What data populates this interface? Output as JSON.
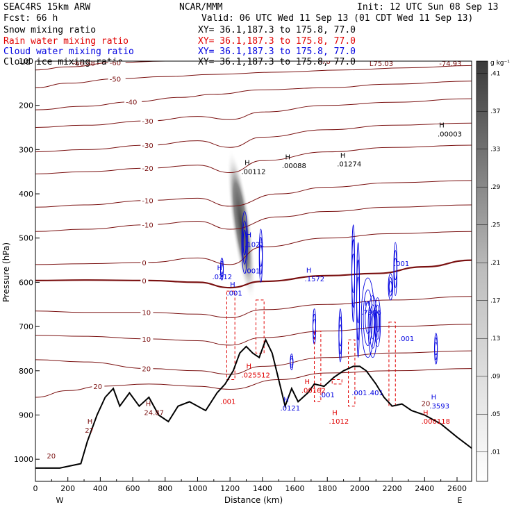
{
  "header": {
    "left_line1": "SEAC4RS 15km ARW",
    "left_line2": "Fcst:    66 h",
    "center_line1": "NCAR/MMM",
    "right_line1": "Init: 12 UTC Sun 08 Sep 13",
    "right_line2": "Valid: 06 UTC Wed 11 Sep 13 (01 CDT Wed 11 Sep 13)",
    "fields": [
      {
        "name": "Snow mixing ratio",
        "xy": "XY=  36.1,187.3 to 175.8, 77.0",
        "color": "#000000"
      },
      {
        "name": "Rain water mixing ratio",
        "xy": "XY=  36.1,187.3 to 175.8, 77.0",
        "color": "#e00000"
      },
      {
        "name": "Cloud water mixing ratio",
        "xy": "XY=  36.1,187.3 to 175.8, 77.0",
        "color": "#0000e0"
      },
      {
        "name": "Cloud ice mixing ratio",
        "xy": "XY=  36.1,187.3 to 175.8, 77.0",
        "color": "#000000"
      }
    ]
  },
  "chart_data": {
    "type": "cross-section",
    "xlabel": "Distance (km)",
    "ylabel": "Pressure (hPa)",
    "xlim": [
      0,
      2690
    ],
    "ylim": [
      100,
      1050
    ],
    "x_ticks": [
      0,
      200,
      400,
      600,
      800,
      1000,
      1200,
      1400,
      1600,
      1800,
      2000,
      2200,
      2400,
      2600
    ],
    "y_ticks": [
      100,
      200,
      300,
      400,
      500,
      600,
      700,
      800,
      900,
      1000
    ],
    "y_axis_reversed": true,
    "x_end_labels": {
      "left": "W",
      "right": "E"
    },
    "colors": {
      "temperature": "#7a1010",
      "rain": "#e00000",
      "cloud": "#0000e0",
      "terrain": "#000000"
    },
    "colorbar": {
      "units": "g kg⁻¹",
      "labels": [
        ".01",
        ".05",
        ".09",
        ".13",
        ".17",
        ".21",
        ".25",
        ".29",
        ".33",
        ".37",
        ".41"
      ]
    },
    "temperature_isotherms": [
      {
        "label": "-60",
        "points": [
          [
            0,
            120
          ],
          [
            200,
            113
          ],
          [
            500,
            103
          ],
          [
            800,
            100
          ],
          [
            1100,
            96
          ],
          [
            1500,
            92
          ],
          [
            1900,
            90
          ],
          [
            2300,
            86
          ],
          [
            2690,
            83
          ]
        ]
      },
      {
        "label": "-50",
        "points": [
          [
            0,
            160
          ],
          [
            200,
            150
          ],
          [
            500,
            140
          ],
          [
            800,
            135
          ],
          [
            1100,
            130
          ],
          [
            1500,
            125
          ],
          [
            1900,
            120
          ],
          [
            2300,
            115
          ],
          [
            2690,
            110
          ]
        ]
      },
      {
        "label": "-40",
        "points": [
          [
            0,
            210
          ],
          [
            300,
            202
          ],
          [
            600,
            192
          ],
          [
            900,
            182
          ],
          [
            1100,
            175
          ],
          [
            1400,
            165
          ],
          [
            1800,
            160
          ],
          [
            2200,
            152
          ],
          [
            2690,
            145
          ]
        ]
      },
      {
        "label": "-30",
        "points": [
          [
            0,
            250
          ],
          [
            300,
            245
          ],
          [
            700,
            235
          ],
          [
            1000,
            225
          ],
          [
            1200,
            232
          ],
          [
            1400,
            215
          ],
          [
            1800,
            200
          ],
          [
            2200,
            193
          ],
          [
            2690,
            185
          ]
        ]
      },
      {
        "label": "-30",
        "points": [
          [
            0,
            305
          ],
          [
            300,
            300
          ],
          [
            700,
            290
          ],
          [
            1000,
            280
          ],
          [
            1200,
            295
          ],
          [
            1400,
            272
          ],
          [
            1800,
            255
          ],
          [
            2200,
            245
          ],
          [
            2690,
            240
          ]
        ]
      },
      {
        "label": "-20",
        "points": [
          [
            0,
            355
          ],
          [
            300,
            350
          ],
          [
            700,
            342
          ],
          [
            1000,
            335
          ],
          [
            1200,
            352
          ],
          [
            1400,
            325
          ],
          [
            1800,
            305
          ],
          [
            2200,
            295
          ],
          [
            2690,
            290
          ]
        ]
      },
      {
        "label": "-10",
        "points": [
          [
            0,
            430
          ],
          [
            300,
            425
          ],
          [
            700,
            415
          ],
          [
            1000,
            410
          ],
          [
            1200,
            428
          ],
          [
            1500,
            400
          ],
          [
            1800,
            385
          ],
          [
            2200,
            375
          ],
          [
            2690,
            370
          ]
        ]
      },
      {
        "label": "-10",
        "points": [
          [
            0,
            485
          ],
          [
            300,
            480
          ],
          [
            700,
            470
          ],
          [
            1000,
            462
          ],
          [
            1200,
            480
          ],
          [
            1500,
            452
          ],
          [
            1800,
            440
          ],
          [
            2200,
            430
          ],
          [
            2690,
            425
          ]
        ]
      },
      {
        "label": "0",
        "points": [
          [
            0,
            560
          ],
          [
            300,
            558
          ],
          [
            700,
            555
          ],
          [
            1000,
            545
          ],
          [
            1200,
            560
          ],
          [
            1400,
            520
          ],
          [
            1800,
            500
          ],
          [
            2200,
            490
          ],
          [
            2690,
            485
          ]
        ]
      },
      {
        "label": "0",
        "points": [
          [
            0,
            596
          ],
          [
            300,
            595
          ],
          [
            700,
            596
          ],
          [
            1000,
            600
          ],
          [
            1200,
            612
          ],
          [
            1400,
            598
          ],
          [
            1800,
            585
          ],
          [
            2100,
            580
          ],
          [
            2400,
            565
          ],
          [
            2690,
            550
          ]
        ]
      },
      {
        "label": "10",
        "points": [
          [
            0,
            665
          ],
          [
            300,
            668
          ],
          [
            700,
            668
          ],
          [
            1000,
            672
          ],
          [
            1200,
            680
          ],
          [
            1400,
            662
          ],
          [
            1800,
            650
          ],
          [
            2200,
            640
          ],
          [
            2690,
            632
          ]
        ]
      },
      {
        "label": "10",
        "points": [
          [
            0,
            720
          ],
          [
            300,
            722
          ],
          [
            700,
            728
          ],
          [
            1000,
            732
          ],
          [
            1200,
            742
          ],
          [
            1400,
            725
          ],
          [
            1800,
            710
          ],
          [
            2200,
            700
          ],
          [
            2690,
            695
          ]
        ]
      },
      {
        "label": "20",
        "points": [
          [
            0,
            775
          ],
          [
            300,
            780
          ],
          [
            700,
            795
          ],
          [
            1000,
            800
          ],
          [
            1200,
            808
          ],
          [
            1400,
            790
          ],
          [
            1800,
            770
          ],
          [
            2200,
            760
          ],
          [
            2690,
            755
          ]
        ]
      },
      {
        "label": "20",
        "points": [
          [
            0,
            860
          ],
          [
            200,
            845
          ],
          [
            400,
            835
          ],
          [
            700,
            830
          ],
          [
            1000,
            835
          ],
          [
            1200,
            842
          ],
          [
            1500,
            820
          ],
          [
            1800,
            805
          ],
          [
            2200,
            800
          ],
          [
            2690,
            795
          ]
        ]
      }
    ],
    "terrain_profile": [
      [
        0,
        1020
      ],
      [
        150,
        1020
      ],
      [
        280,
        1010
      ],
      [
        320,
        960
      ],
      [
        380,
        900
      ],
      [
        430,
        860
      ],
      [
        480,
        840
      ],
      [
        520,
        880
      ],
      [
        580,
        850
      ],
      [
        640,
        880
      ],
      [
        700,
        860
      ],
      [
        760,
        900
      ],
      [
        820,
        915
      ],
      [
        880,
        880
      ],
      [
        950,
        870
      ],
      [
        1050,
        890
      ],
      [
        1120,
        850
      ],
      [
        1170,
        830
      ],
      [
        1220,
        800
      ],
      [
        1260,
        760
      ],
      [
        1300,
        745
      ],
      [
        1340,
        760
      ],
      [
        1380,
        770
      ],
      [
        1420,
        730
      ],
      [
        1460,
        760
      ],
      [
        1500,
        820
      ],
      [
        1540,
        880
      ],
      [
        1580,
        840
      ],
      [
        1620,
        870
      ],
      [
        1680,
        850
      ],
      [
        1720,
        830
      ],
      [
        1780,
        835
      ],
      [
        1840,
        815
      ],
      [
        1900,
        800
      ],
      [
        1960,
        790
      ],
      [
        2000,
        790
      ],
      [
        2040,
        800
      ],
      [
        2100,
        830
      ],
      [
        2150,
        860
      ],
      [
        2200,
        880
      ],
      [
        2260,
        875
      ],
      [
        2320,
        890
      ],
      [
        2400,
        900
      ],
      [
        2500,
        920
      ],
      [
        2600,
        950
      ],
      [
        2690,
        975
      ]
    ],
    "annotations": [
      {
        "text": "-66.58",
        "x": 230,
        "y": 110,
        "color": "#7a1010"
      },
      {
        "text": "-70",
        "x": 1750,
        "y": 106,
        "color": "#7a1010"
      },
      {
        "text": "L75.03",
        "x": 2060,
        "y": 111,
        "color": "#7a1010"
      },
      {
        "text": "-74.93",
        "x": 2490,
        "y": 111,
        "color": "#7a1010"
      },
      {
        "text": "H",
        "x": 2490,
        "y": 250,
        "color": "#000000"
      },
      {
        "text": ".00003",
        "x": 2480,
        "y": 270,
        "color": "#000000"
      },
      {
        "text": "H",
        "x": 1290,
        "y": 335,
        "color": "#000000"
      },
      {
        "text": ".00112",
        "x": 1270,
        "y": 355,
        "color": "#000000"
      },
      {
        "text": "H",
        "x": 1540,
        "y": 322,
        "color": "#000000"
      },
      {
        "text": ".00088",
        "x": 1520,
        "y": 342,
        "color": "#000000"
      },
      {
        "text": "H",
        "x": 1880,
        "y": 318,
        "color": "#000000"
      },
      {
        "text": ".01274",
        "x": 1860,
        "y": 338,
        "color": "#000000"
      },
      {
        "text": "H",
        "x": 1300,
        "y": 498,
        "color": "#0000e0"
      },
      {
        "text": ".1021",
        "x": 1290,
        "y": 520,
        "color": "#0000e0"
      },
      {
        "text": "H",
        "x": 1120,
        "y": 573,
        "color": "#0000e0"
      },
      {
        "text": ".0212",
        "x": 1090,
        "y": 593,
        "color": "#0000e0"
      },
      {
        "text": ".001",
        "x": 1290,
        "y": 580,
        "color": "#0000e0"
      },
      {
        "text": "H",
        "x": 1200,
        "y": 610,
        "color": "#0000e0"
      },
      {
        "text": ".001",
        "x": 1180,
        "y": 630,
        "color": "#0000e0"
      },
      {
        "text": "H",
        "x": 1670,
        "y": 578,
        "color": "#0000e0"
      },
      {
        "text": ".1572",
        "x": 1660,
        "y": 598,
        "color": "#0000e0"
      },
      {
        "text": "H",
        "x": 2030,
        "y": 653,
        "color": "#0000e0"
      },
      {
        "text": ".7906",
        "x": 2010,
        "y": 673,
        "color": "#0000e0"
      },
      {
        "text": ".001",
        "x": 2210,
        "y": 563,
        "color": "#0000e0"
      },
      {
        "text": ".001",
        "x": 2240,
        "y": 733,
        "color": "#0000e0"
      },
      {
        "text": ".001",
        "x": 1950,
        "y": 855,
        "color": "#0000e0"
      },
      {
        "text": ".001",
        "x": 1750,
        "y": 860,
        "color": "#0000e0"
      },
      {
        "text": ".401",
        "x": 2050,
        "y": 855,
        "color": "#0000e0"
      },
      {
        "text": "H",
        "x": 1530,
        "y": 870,
        "color": "#0000e0"
      },
      {
        "text": ".0121",
        "x": 1510,
        "y": 890,
        "color": "#0000e0"
      },
      {
        "text": "H",
        "x": 2440,
        "y": 865,
        "color": "#0000e0"
      },
      {
        "text": ".3593",
        "x": 2430,
        "y": 885,
        "color": "#0000e0"
      },
      {
        "text": "H",
        "x": 1300,
        "y": 795,
        "color": "#e00000"
      },
      {
        "text": ".025512",
        "x": 1270,
        "y": 815,
        "color": "#e00000"
      },
      {
        "text": ".001",
        "x": 1140,
        "y": 875,
        "color": "#e00000"
      },
      {
        "text": "H",
        "x": 1660,
        "y": 830,
        "color": "#e00000"
      },
      {
        "text": ".00162",
        "x": 1640,
        "y": 850,
        "color": "#e00000"
      },
      {
        "text": "H",
        "x": 1830,
        "y": 900,
        "color": "#e00000"
      },
      {
        "text": ".1012",
        "x": 1810,
        "y": 920,
        "color": "#e00000"
      },
      {
        "text": "H",
        "x": 2390,
        "y": 900,
        "color": "#e00000"
      },
      {
        "text": ".000118",
        "x": 2380,
        "y": 920,
        "color": "#e00000"
      },
      {
        "text": "H",
        "x": 680,
        "y": 880,
        "color": "#7a1010"
      },
      {
        "text": "24.87",
        "x": 670,
        "y": 900,
        "color": "#7a1010"
      },
      {
        "text": "H",
        "x": 320,
        "y": 920,
        "color": "#7a1010"
      },
      {
        "text": "27",
        "x": 305,
        "y": 940,
        "color": "#7a1010"
      },
      {
        "text": "20",
        "x": 70,
        "y": 998,
        "color": "#7a1010"
      },
      {
        "text": "20",
        "x": 2380,
        "y": 880,
        "color": "#7a1010"
      }
    ]
  }
}
